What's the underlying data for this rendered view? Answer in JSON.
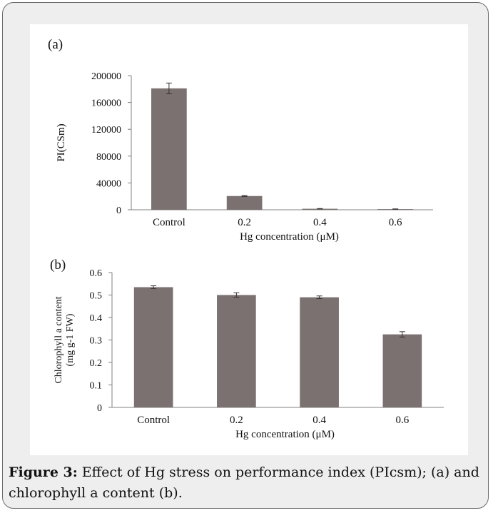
{
  "caption": {
    "label": "Figure 3:",
    "text": " Effect of Hg stress on performance index (PIcsm); (a) and chlorophyll a content (b)."
  },
  "colors": {
    "bar": "#7a7170",
    "axis": "#808080",
    "frame": "#6a6a6a",
    "background": "#eeeeee"
  },
  "chart_data": [
    {
      "type": "bar",
      "panel_label": "(a)",
      "categories": [
        "Control",
        "0.2",
        "0.4",
        "0.6"
      ],
      "values": [
        181000,
        20500,
        1500,
        1000
      ],
      "errors": [
        8000,
        800,
        300,
        300
      ],
      "xlabel": "Hg concentration (μM)",
      "ylabel": "PI(CSm)",
      "ylim": [
        0,
        200000
      ],
      "yticks": [
        "0",
        "40000",
        "80000",
        "120000",
        "160000",
        "200000"
      ],
      "grid": false
    },
    {
      "type": "bar",
      "panel_label": "(b)",
      "categories": [
        "Control",
        "0.2",
        "0.4",
        "0.6"
      ],
      "values": [
        0.535,
        0.5,
        0.49,
        0.325
      ],
      "errors": [
        0.006,
        0.01,
        0.006,
        0.012
      ],
      "xlabel": "Hg concentration (μM)",
      "ylabel": "Chlorophyll a content",
      "ylabel2": "(mg g-1 FW)",
      "ylim": [
        0,
        0.6
      ],
      "yticks": [
        "0",
        "0.1",
        "0.2",
        "0.3",
        "0.4",
        "0.5",
        "0.6"
      ],
      "grid": false
    }
  ]
}
